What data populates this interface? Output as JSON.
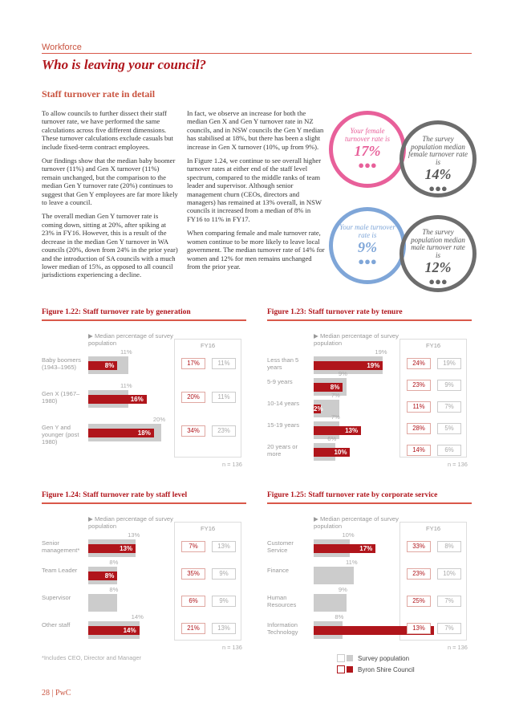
{
  "header": {
    "section": "Workforce",
    "title": "Who is leaving your council?",
    "subtitle": "Staff turnover rate in detail"
  },
  "body": {
    "col1": [
      "To allow councils to further dissect their staff turnover rate, we have performed the same calculations across five different dimensions. These turnover calculations exclude casuals but include fixed-term contract employees.",
      "Our findings show that the median baby boomer turnover (11%) and Gen X turnover (11%) remain unchanged, but the comparison to the median Gen Y turnover rate (20%) continues to suggest that Gen Y employees are far more likely to leave a council.",
      "The overall median Gen Y turnover rate is coming down, sitting at 20%, after spiking at 23% in FY16. However, this is a result of the decrease in the median Gen Y turnover in WA councils (20%, down from 24% in the prior year) and the introduction of SA councils with a much lower median of 15%, as opposed to all council jurisdictions experiencing a decline."
    ],
    "col2": [
      "In fact, we observe an increase for both the median Gen X and Gen Y turnover rate in NZ councils, and in NSW councils the Gen Y median has stabilised at 18%, but there has been a slight increase in Gen X turnover (10%, up from 9%).",
      "In Figure 1.24, we continue to see overall higher turnover rates at either end of the staff level spectrum, compared to the middle ranks of team leader and supervisor. Although senior management churn (CEOs, directors and managers) has remained at 13% overall, in NSW councils it increased from a median of 8% in FY16 to 11% in FY17.",
      "When comparing female and male turnover rate, women continue to be more likely to leave local government. The median turnover rate of 14% for women and 12% for men remains unchanged from the prior year."
    ]
  },
  "circles": {
    "female_council": {
      "label": "Your female turnover rate is",
      "value": "17%",
      "icon": "people-icon"
    },
    "female_survey": {
      "label": "The survey population median female turnover rate is",
      "value": "14%",
      "icon": "people-icon"
    },
    "male_council": {
      "label": "Your male turnover rate is",
      "value": "9%",
      "icon": "people-icon"
    },
    "male_survey": {
      "label": "The survey population median male turnover rate is",
      "value": "12%",
      "icon": "people-icon"
    }
  },
  "colors": {
    "accent": "#b0151b",
    "grey_bar": "#cccccc",
    "female": "#e8609a",
    "male": "#7fa6d8",
    "survey_circle": "#6d6d6d"
  },
  "legend": {
    "survey": "Survey population",
    "council": "Byron Shire Council"
  },
  "footnote": "*Includes CEO, Director and Manager",
  "page_footer": "28 | PwC",
  "chart_data": [
    {
      "type": "bar",
      "title": "Figure 1.22: Staff turnover rate by generation",
      "hint": "Median percentage of survey population",
      "year_label": "FY16",
      "n": "n = 136",
      "categories": [
        "Baby boomers (1943–1965)",
        "Gen X (1967–1980)",
        "Gen Y and younger (post 1980)"
      ],
      "series": [
        {
          "name": "Survey population",
          "values": [
            11,
            11,
            20
          ]
        },
        {
          "name": "Byron Shire Council",
          "values": [
            8,
            16,
            18
          ]
        }
      ],
      "prior_council": [
        "17%",
        "20%",
        "34%"
      ],
      "prior_survey": [
        "11%",
        "11%",
        "23%"
      ]
    },
    {
      "type": "bar",
      "title": "Figure 1.23: Staff turnover rate by tenure",
      "hint": "Median percentage of survey population",
      "year_label": "FY16",
      "n": "n = 136",
      "categories": [
        "Less than 5 years",
        "5-9 years",
        "10-14 years",
        "15-19 years",
        "20 years or more"
      ],
      "series": [
        {
          "name": "Survey population",
          "values": [
            19,
            9,
            7,
            7,
            6
          ]
        },
        {
          "name": "Byron Shire Council",
          "values": [
            19,
            8,
            2,
            13,
            10
          ]
        }
      ],
      "prior_council": [
        "24%",
        "23%",
        "11%",
        "28%",
        "14%"
      ],
      "prior_survey": [
        "19%",
        "9%",
        "7%",
        "5%",
        "6%"
      ]
    },
    {
      "type": "bar",
      "title": "Figure 1.24: Staff turnover rate by staff level",
      "hint": "Median percentage of survey population",
      "year_label": "FY16",
      "n": "n = 136",
      "categories": [
        "Senior management*",
        "Team Leader",
        "Supervisor",
        "Other staff"
      ],
      "series": [
        {
          "name": "Survey population",
          "values": [
            13,
            8,
            8,
            14
          ]
        },
        {
          "name": "Byron Shire Council",
          "values": [
            13,
            8,
            0,
            14
          ]
        }
      ],
      "prior_council": [
        "7%",
        "35%",
        "6%",
        "21%"
      ],
      "prior_survey": [
        "13%",
        "9%",
        "9%",
        "13%"
      ]
    },
    {
      "type": "bar",
      "title": "Figure 1.25: Staff turnover rate by corporate service",
      "hint": "Median percentage of survey population",
      "year_label": "FY16",
      "n": "n = 136",
      "categories": [
        "Customer Service",
        "Finance",
        "Human Resources",
        "Information Technology"
      ],
      "series": [
        {
          "name": "Survey population",
          "values": [
            10,
            11,
            9,
            8
          ]
        },
        {
          "name": "Byron Shire Council",
          "values": [
            17,
            0,
            0,
            33
          ]
        }
      ],
      "prior_council": [
        "33%",
        "23%",
        "25%",
        "13%"
      ],
      "prior_survey": [
        "8%",
        "10%",
        "7%",
        "7%"
      ]
    }
  ]
}
